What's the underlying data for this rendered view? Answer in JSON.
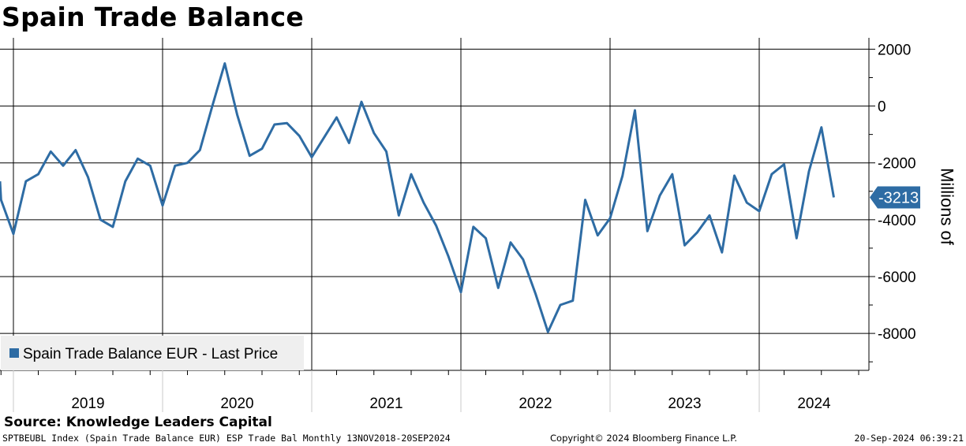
{
  "title": "Spain Trade Balance",
  "source": "Source:  Knowledge Leaders Capital",
  "footer": {
    "left": "SPTBEUBL Index (Spain Trade Balance EUR) ESP Trade Bal  Monthly 13NOV2018-20SEP2024",
    "center": "Copyright© 2024 Bloomberg Finance L.P.",
    "right": "20-Sep-2024 06:39:21"
  },
  "chart_data": {
    "type": "line",
    "ylabel": "Millions of",
    "ylim": [
      -9300,
      2400
    ],
    "yticks": [
      "2000",
      "0",
      "-2000",
      "-4000",
      "-6000",
      "-8000"
    ],
    "ytick_values": [
      2000,
      0,
      -2000,
      -4000,
      -6000,
      -8000
    ],
    "grid": true,
    "x_start": "2018-11",
    "x_end": "2024-09",
    "years": [
      "2019",
      "2020",
      "2021",
      "2022",
      "2023",
      "2024"
    ],
    "legend": {
      "label": "Spain Trade Balance EUR - Last Price",
      "placement": "bottom-left"
    },
    "last_value_label": "-3213.7",
    "colors": {
      "line": "#2e6ca4",
      "tag": "#2e6ca4",
      "grid": "#000000",
      "legend_bg": "#efefef"
    },
    "series": [
      {
        "name": "Spain Trade Balance EUR - Last Price",
        "x": [
          "2018-11",
          "2018-12",
          "2019-01",
          "2019-02",
          "2019-03",
          "2019-04",
          "2019-05",
          "2019-06",
          "2019-07",
          "2019-08",
          "2019-09",
          "2019-10",
          "2019-11",
          "2019-12",
          "2020-01",
          "2020-02",
          "2020-03",
          "2020-04",
          "2020-05",
          "2020-06",
          "2020-07",
          "2020-08",
          "2020-09",
          "2020-10",
          "2020-11",
          "2020-12",
          "2021-01",
          "2021-02",
          "2021-03",
          "2021-04",
          "2021-05",
          "2021-06",
          "2021-07",
          "2021-08",
          "2021-09",
          "2021-10",
          "2021-11",
          "2021-12",
          "2022-01",
          "2022-02",
          "2022-03",
          "2022-04",
          "2022-05",
          "2022-06",
          "2022-07",
          "2022-08",
          "2022-09",
          "2022-10",
          "2022-11",
          "2022-12",
          "2023-01",
          "2023-02",
          "2023-03",
          "2023-04",
          "2023-05",
          "2023-06",
          "2023-07",
          "2023-08",
          "2023-09",
          "2023-10",
          "2023-11",
          "2023-12",
          "2024-01",
          "2024-02",
          "2024-03",
          "2024-04",
          "2024-05",
          "2024-06",
          "2024-07"
        ],
        "values": [
          -2650,
          -3300,
          -4500,
          -2650,
          -2400,
          -1600,
          -2100,
          -1550,
          -2500,
          -4000,
          -4250,
          -2650,
          -1850,
          -2100,
          -3500,
          -2100,
          -2000,
          -1550,
          0,
          1500,
          -300,
          -1750,
          -1500,
          -650,
          -600,
          -1050,
          -1800,
          -1100,
          -400,
          -1300,
          150,
          -950,
          -1600,
          -3850,
          -2400,
          -3400,
          -4200,
          -5300,
          -6550,
          -4250,
          -4650,
          -6400,
          -4800,
          -5400,
          -6600,
          -7950,
          -7000,
          -6850,
          -3300,
          -4550,
          -3950,
          -2450,
          -150,
          -4400,
          -3150,
          -2400,
          -4900,
          -4450,
          -3850,
          -5150,
          -2450,
          -3400,
          -3700,
          -2400,
          -2050,
          -4650,
          -2300,
          -750,
          -3213.7
        ]
      }
    ]
  }
}
